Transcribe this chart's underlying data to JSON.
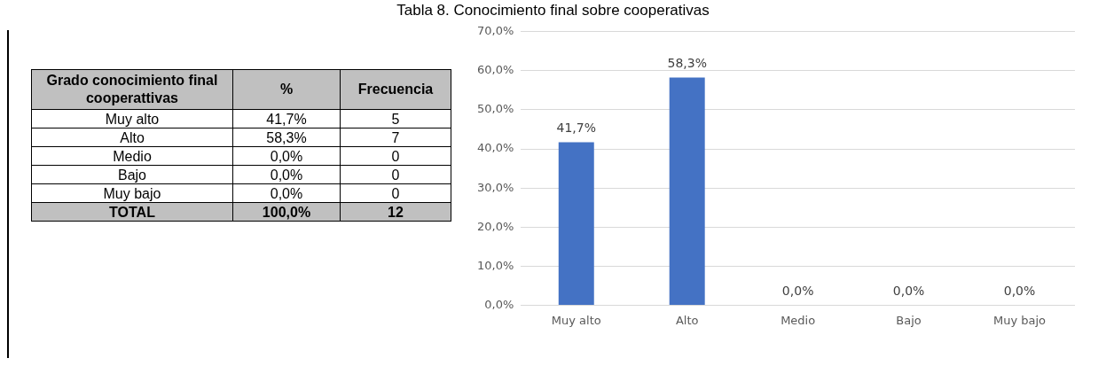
{
  "chart_data": [
    {
      "type": "other",
      "annotations": [
        "Grado conocimiento final cooperattivas",
        "%",
        "Frecuencia",
        "Muy alto",
        "41,7%",
        "5",
        "Alto",
        "58,3%",
        "7",
        "Medio",
        "0,0%",
        "0",
        "Bajo",
        "0,0%",
        "0",
        "Muy bajo",
        "0,0%",
        "0",
        "TOTAL",
        "100,0%",
        "12"
      ]
    },
    {
      "type": "bar",
      "title": "Tabla 8. Conocimiento final sobre cooperativas",
      "categories": [
        "Muy alto",
        "Alto",
        "Medio",
        "Bajo",
        "Muy bajo"
      ],
      "values": [
        41.7,
        58.3,
        0,
        0,
        0
      ],
      "color": "#4472c4",
      "value_labels": [
        "41,7%",
        "58,3%",
        "0,0%",
        "0,0%",
        "0,0%"
      ],
      "ylim": [
        0,
        70
      ],
      "yticks": [
        {
          "value": 0,
          "label": "0,0%"
        },
        {
          "value": 10,
          "label": "10,0%"
        },
        {
          "value": 20,
          "label": "20,0%"
        },
        {
          "value": 30,
          "label": "30,0%"
        },
        {
          "value": 40,
          "label": "40,0%"
        },
        {
          "value": 50,
          "label": "50,0%"
        },
        {
          "value": 60,
          "label": "60,0%"
        },
        {
          "value": 70,
          "label": "70,0%"
        }
      ],
      "grid": "y",
      "legend": false
    }
  ]
}
